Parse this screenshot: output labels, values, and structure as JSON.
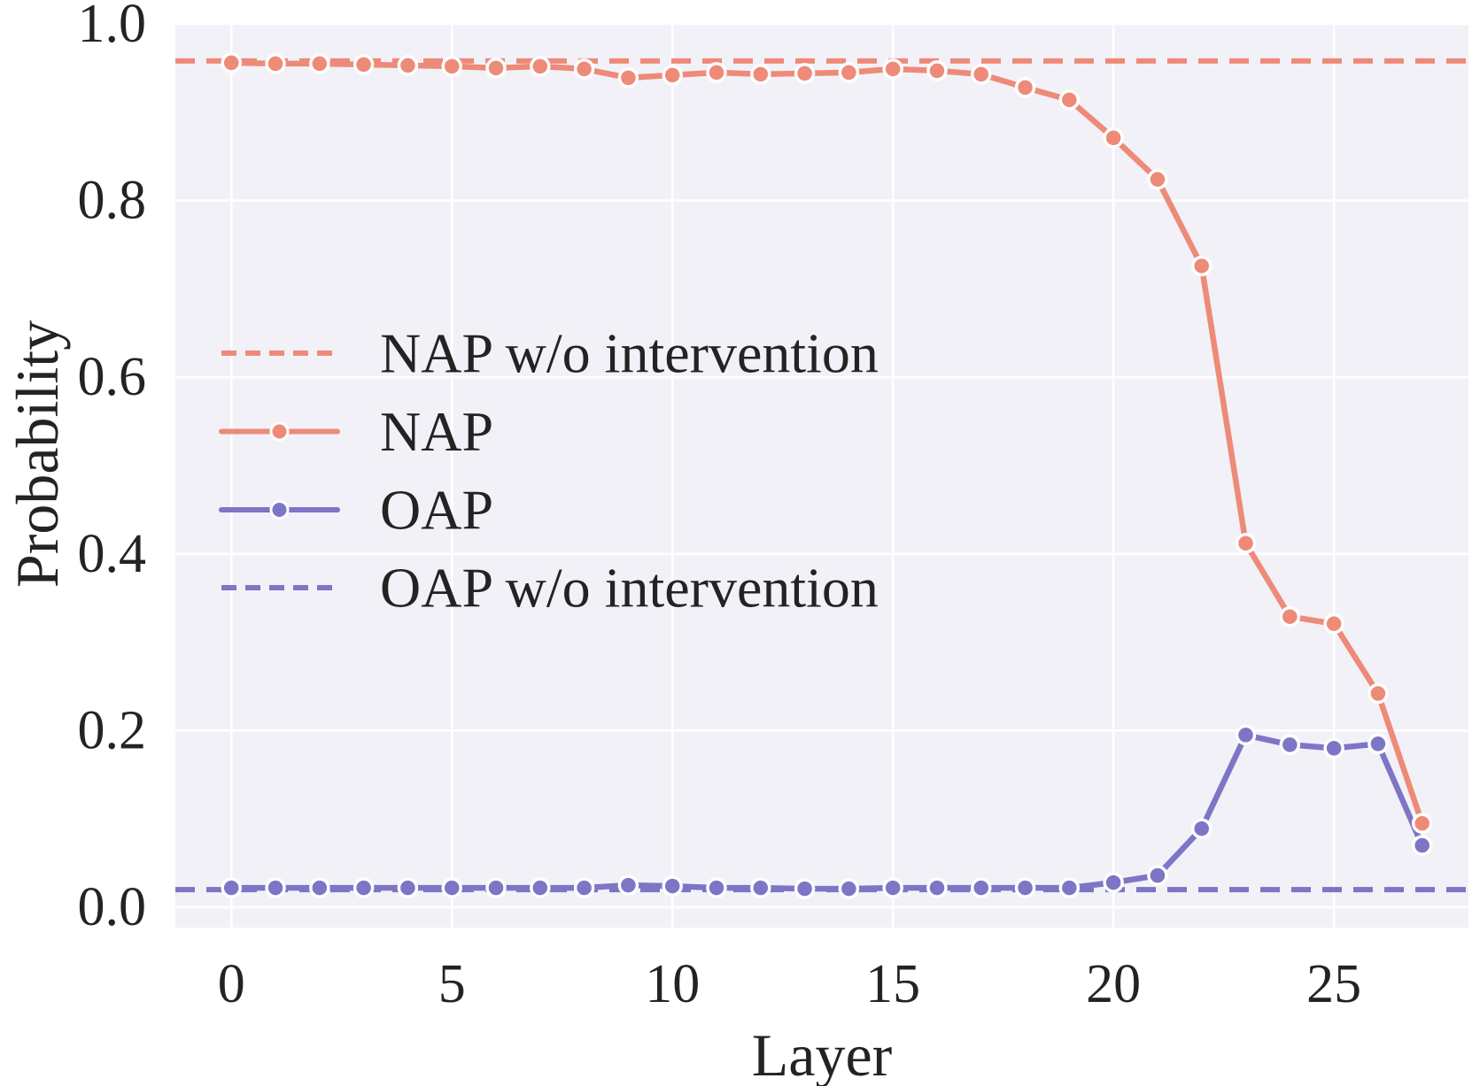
{
  "chart_data": {
    "type": "line",
    "title": "",
    "xlabel": "Layer",
    "ylabel": "Probability",
    "x": [
      0,
      1,
      2,
      3,
      4,
      5,
      6,
      7,
      8,
      9,
      10,
      11,
      12,
      13,
      14,
      15,
      16,
      17,
      18,
      19,
      20,
      21,
      22,
      23,
      24,
      25,
      26,
      27
    ],
    "xticks": [
      0,
      5,
      10,
      15,
      20,
      25
    ],
    "yticks": [
      0.0,
      0.2,
      0.4,
      0.6,
      0.8,
      1.0
    ],
    "ytick_labels": [
      "0.0",
      "0.2",
      "0.4",
      "0.6",
      "0.8",
      "1.0"
    ],
    "xlim": [
      -1.27,
      28.05
    ],
    "ylim": [
      -0.023,
      1.0
    ],
    "grid": true,
    "legend_position": "center-left",
    "series": [
      {
        "name": "NAP w/o intervention",
        "style": "dashed",
        "marker": false,
        "color": "#ee8a78",
        "constant": 0.958
      },
      {
        "name": "NAP",
        "style": "solid",
        "marker": true,
        "color": "#ee8a78",
        "values": [
          0.956,
          0.955,
          0.955,
          0.954,
          0.953,
          0.952,
          0.95,
          0.952,
          0.949,
          0.939,
          0.942,
          0.945,
          0.943,
          0.944,
          0.945,
          0.949,
          0.947,
          0.943,
          0.928,
          0.914,
          0.871,
          0.824,
          0.726,
          0.412,
          0.329,
          0.321,
          0.242,
          0.095
        ]
      },
      {
        "name": "OAP",
        "style": "solid",
        "marker": true,
        "color": "#7d75c6",
        "values": [
          0.022,
          0.022,
          0.022,
          0.022,
          0.022,
          0.022,
          0.022,
          0.022,
          0.022,
          0.025,
          0.024,
          0.022,
          0.022,
          0.021,
          0.021,
          0.022,
          0.022,
          0.022,
          0.022,
          0.022,
          0.028,
          0.036,
          0.089,
          0.195,
          0.184,
          0.18,
          0.185,
          0.07
        ]
      },
      {
        "name": "OAP w/o intervention",
        "style": "dashed",
        "marker": false,
        "color": "#7d75c6",
        "constant": 0.02
      }
    ],
    "colors": {
      "plot_bg": "#f2f1f7",
      "grid": "#ffffff",
      "text": "#232323",
      "figure_bg": "#ffffff"
    }
  }
}
